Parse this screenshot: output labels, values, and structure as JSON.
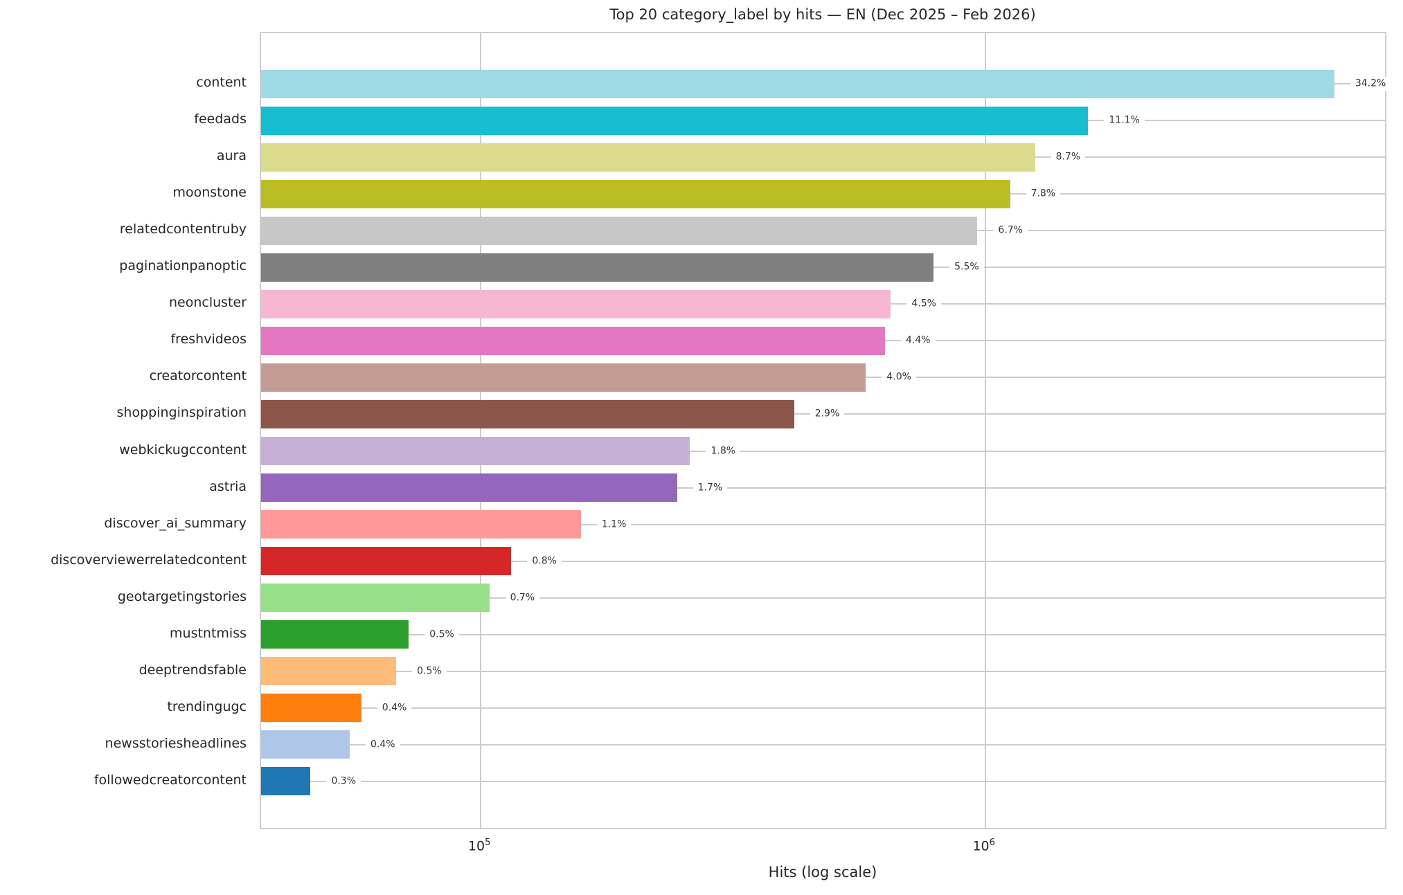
{
  "chart_data": {
    "type": "bar",
    "orientation": "horizontal",
    "title": "Top 20 category_label by hits — EN (Dec 2025 – Feb 2026)",
    "xlabel": "Hits (log scale)",
    "x_scale": "log",
    "xlim": [
      36700,
      6200000
    ],
    "grid": "vertical major gridlines only, drawn behind bars",
    "legend": "none",
    "x_ticks": [
      {
        "value": 100000,
        "base": "10",
        "exp": "5"
      },
      {
        "value": 1000000,
        "base": "10",
        "exp": "6"
      }
    ],
    "categories": [
      "content",
      "feedads",
      "aura",
      "moonstone",
      "relatedcontentruby",
      "paginationpanoptic",
      "neoncluster",
      "freshvideos",
      "creatorcontent",
      "shoppinginspiration",
      "webkickugccontent",
      "astria",
      "discover_ai_summary",
      "discoverviewerrelatedcontent",
      "geotargetingstories",
      "mustntmiss",
      "deeptrendsfable",
      "trendingugc",
      "newsstoriesheadlines",
      "followedcreatorcontent"
    ],
    "values": [
      4920000,
      1600000,
      1255000,
      1120000,
      965000,
      790000,
      650000,
      633000,
      580000,
      418000,
      260000,
      245000,
      158000,
      115000,
      104000,
      72000,
      68000,
      58000,
      55000,
      46000
    ],
    "pct_labels": [
      "34.2%",
      "11.1%",
      "8.7%",
      "7.8%",
      "6.7%",
      "5.5%",
      "4.5%",
      "4.4%",
      "4.0%",
      "2.9%",
      "1.8%",
      "1.7%",
      "1.1%",
      "0.8%",
      "0.7%",
      "0.5%",
      "0.5%",
      "0.4%",
      "0.4%",
      "0.3%"
    ],
    "colors": [
      "#9EDAE5",
      "#17BECF",
      "#DBDB8D",
      "#BCBD22",
      "#C7C7C7",
      "#7F7F7F",
      "#F7B6D2",
      "#E377C2",
      "#C49C94",
      "#8C564B",
      "#C5B0D5",
      "#9467BD",
      "#FF9896",
      "#D62728",
      "#98DF8A",
      "#2CA02C",
      "#FFBB78",
      "#FF7F0E",
      "#AEC7E8",
      "#1F77B4"
    ]
  },
  "theme": {
    "background": "#ffffff",
    "grid_color": "#cccccc",
    "spine_color": "#cccccc",
    "text_color": "#262626",
    "pct_text_color": "#333333"
  }
}
